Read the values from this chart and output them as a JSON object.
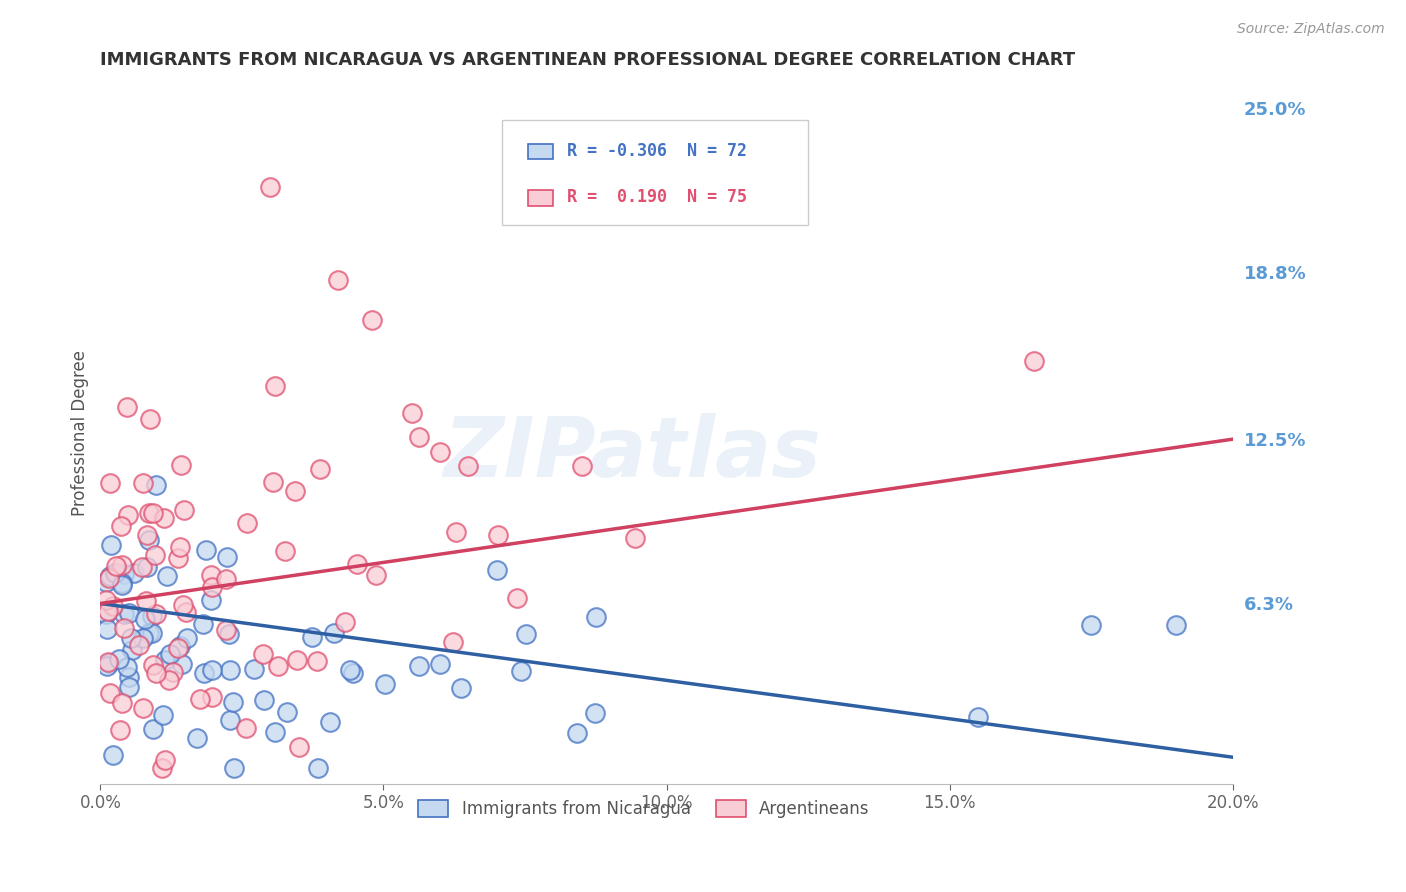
{
  "title": "IMMIGRANTS FROM NICARAGUA VS ARGENTINEAN PROFESSIONAL DEGREE CORRELATION CHART",
  "source": "Source: ZipAtlas.com",
  "ylabel": "Professional Degree",
  "xmin": 0.0,
  "xmax": 0.2,
  "ymin": -0.005,
  "ymax": 0.26,
  "ytick_vals": [
    0.0,
    0.063,
    0.125,
    0.188,
    0.25
  ],
  "ytick_labels": [
    "",
    "6.3%",
    "12.5%",
    "18.8%",
    "25.0%"
  ],
  "xtick_vals": [
    0.0,
    0.05,
    0.1,
    0.15,
    0.2
  ],
  "xtick_labels": [
    "0.0%",
    "5.0%",
    "10.0%",
    "15.0%",
    "20.0%"
  ],
  "watermark": "ZIPatlas",
  "blue_fill": "#c5d9f0",
  "blue_edge": "#4472c4",
  "pink_fill": "#f9cdd5",
  "pink_edge": "#e05070",
  "blue_line_color": "#2e5fa3",
  "pink_line_color": "#d04060",
  "blue_R": "-0.306",
  "blue_N": "72",
  "pink_R": "0.190",
  "pink_N": "75",
  "legend_label_blue": "Immigrants from Nicaragua",
  "legend_label_pink": "Argentineans",
  "bg_color": "#ffffff",
  "grid_color": "#d8d8d8",
  "title_color": "#333333",
  "right_axis_color": "#5b9bd5",
  "blue_trend_x0": 0.0,
  "blue_trend_y0": 0.063,
  "blue_trend_x1": 0.2,
  "blue_trend_y1": 0.005,
  "pink_trend_x0": 0.0,
  "pink_trend_y0": 0.063,
  "pink_trend_x1": 0.2,
  "pink_trend_y1": 0.125
}
